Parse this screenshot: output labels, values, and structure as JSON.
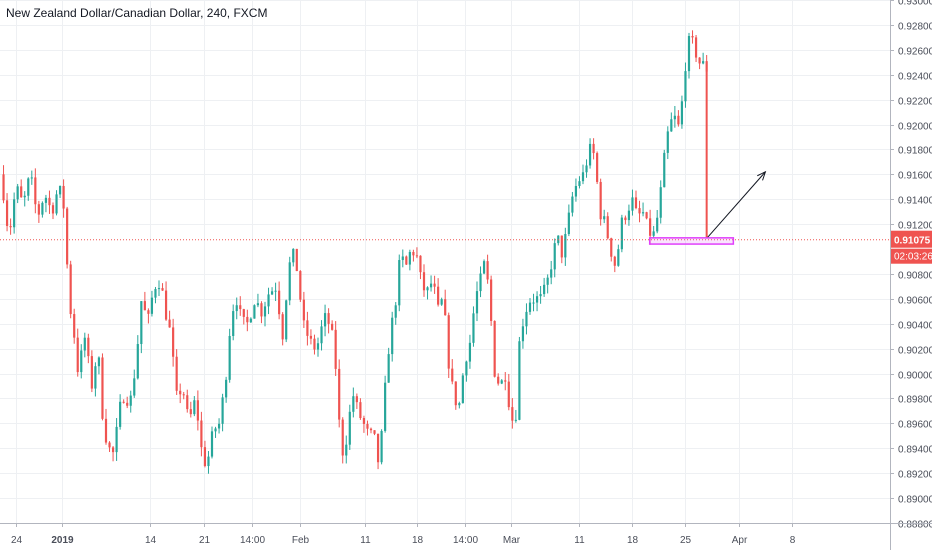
{
  "chart_data": {
    "type": "candlestick",
    "title": "New Zealand Dollar/Canadian Dollar, 240, FXCM",
    "ylim": [
      0.888,
      0.93
    ],
    "y_ticks": [
      "0.93000",
      "0.92800",
      "0.92600",
      "0.92400",
      "0.92200",
      "0.92000",
      "0.91800",
      "0.91600",
      "0.91400",
      "0.91200",
      "0.90800",
      "0.90600",
      "0.90400",
      "0.90200",
      "0.90000",
      "0.89800",
      "0.89600",
      "0.89400",
      "0.89200",
      "0.89000",
      "0.88800"
    ],
    "x_ticks": [
      {
        "label": "24",
        "pos": 0.018
      },
      {
        "label": "2019",
        "pos": 0.07
      },
      {
        "label": "14",
        "pos": 0.168
      },
      {
        "label": "21",
        "pos": 0.229
      },
      {
        "label": "14:00",
        "pos": 0.283
      },
      {
        "label": "Feb",
        "pos": 0.337
      },
      {
        "label": "11",
        "pos": 0.41
      },
      {
        "label": "18",
        "pos": 0.469
      },
      {
        "label": "14:00",
        "pos": 0.522
      },
      {
        "label": "Mar",
        "pos": 0.574
      },
      {
        "label": "11",
        "pos": 0.65
      },
      {
        "label": "18",
        "pos": 0.71
      },
      {
        "label": "25",
        "pos": 0.77
      },
      {
        "label": "Apr",
        "pos": 0.83
      },
      {
        "label": "8",
        "pos": 0.89
      }
    ],
    "last_price": {
      "value": 0.91075,
      "label": "0.91075",
      "countdown": "02:03:26",
      "color": "#ef5350"
    },
    "bull_color": "#26a69a",
    "bear_color": "#ef5350",
    "anchors": [
      [
        0.0,
        0.916
      ],
      [
        0.004,
        0.9145
      ],
      [
        0.01,
        0.911
      ],
      [
        0.018,
        0.915
      ],
      [
        0.026,
        0.9135
      ],
      [
        0.034,
        0.916
      ],
      [
        0.042,
        0.9125
      ],
      [
        0.05,
        0.9145
      ],
      [
        0.058,
        0.913
      ],
      [
        0.066,
        0.915
      ],
      [
        0.073,
        0.913
      ],
      [
        0.077,
        0.906
      ],
      [
        0.082,
        0.904
      ],
      [
        0.088,
        0.9
      ],
      [
        0.095,
        0.903
      ],
      [
        0.103,
        0.899
      ],
      [
        0.11,
        0.902
      ],
      [
        0.116,
        0.896
      ],
      [
        0.122,
        0.894
      ],
      [
        0.128,
        0.8935
      ],
      [
        0.134,
        0.897
      ],
      [
        0.14,
        0.8985
      ],
      [
        0.146,
        0.8975
      ],
      [
        0.153,
        0.901
      ],
      [
        0.159,
        0.906
      ],
      [
        0.166,
        0.904
      ],
      [
        0.173,
        0.907
      ],
      [
        0.18,
        0.9075
      ],
      [
        0.186,
        0.905
      ],
      [
        0.192,
        0.903
      ],
      [
        0.198,
        0.898
      ],
      [
        0.205,
        0.899
      ],
      [
        0.212,
        0.896
      ],
      [
        0.22,
        0.898
      ],
      [
        0.226,
        0.894
      ],
      [
        0.232,
        0.8925
      ],
      [
        0.24,
        0.8955
      ],
      [
        0.247,
        0.896
      ],
      [
        0.254,
        0.9
      ],
      [
        0.26,
        0.905
      ],
      [
        0.266,
        0.906
      ],
      [
        0.272,
        0.904
      ],
      [
        0.278,
        0.904
      ],
      [
        0.286,
        0.906
      ],
      [
        0.294,
        0.905
      ],
      [
        0.302,
        0.9065
      ],
      [
        0.31,
        0.907
      ],
      [
        0.318,
        0.903
      ],
      [
        0.324,
        0.9085
      ],
      [
        0.33,
        0.9095
      ],
      [
        0.335,
        0.908
      ],
      [
        0.34,
        0.904
      ],
      [
        0.346,
        0.903
      ],
      [
        0.352,
        0.902
      ],
      [
        0.358,
        0.9025
      ],
      [
        0.364,
        0.9045
      ],
      [
        0.37,
        0.904
      ],
      [
        0.376,
        0.902
      ],
      [
        0.38,
        0.897
      ],
      [
        0.384,
        0.8935
      ],
      [
        0.39,
        0.895
      ],
      [
        0.396,
        0.8985
      ],
      [
        0.402,
        0.897
      ],
      [
        0.408,
        0.896
      ],
      [
        0.414,
        0.895
      ],
      [
        0.42,
        0.895
      ],
      [
        0.426,
        0.8925
      ],
      [
        0.43,
        0.896
      ],
      [
        0.434,
        0.9
      ],
      [
        0.438,
        0.903
      ],
      [
        0.444,
        0.9055
      ],
      [
        0.45,
        0.9095
      ],
      [
        0.456,
        0.9085
      ],
      [
        0.462,
        0.91
      ],
      [
        0.468,
        0.9095
      ],
      [
        0.474,
        0.907
      ],
      [
        0.48,
        0.9065
      ],
      [
        0.486,
        0.9075
      ],
      [
        0.492,
        0.905
      ],
      [
        0.498,
        0.906
      ],
      [
        0.504,
        0.901
      ],
      [
        0.51,
        0.898
      ],
      [
        0.516,
        0.8975
      ],
      [
        0.522,
        0.901
      ],
      [
        0.528,
        0.9025
      ],
      [
        0.534,
        0.906
      ],
      [
        0.54,
        0.9075
      ],
      [
        0.545,
        0.909
      ],
      [
        0.55,
        0.906
      ],
      [
        0.556,
        0.9
      ],
      [
        0.562,
        0.899
      ],
      [
        0.568,
        0.9
      ],
      [
        0.574,
        0.8965
      ],
      [
        0.579,
        0.896
      ],
      [
        0.584,
        0.903
      ],
      [
        0.59,
        0.905
      ],
      [
        0.596,
        0.906
      ],
      [
        0.602,
        0.906
      ],
      [
        0.608,
        0.906
      ],
      [
        0.614,
        0.907
      ],
      [
        0.62,
        0.909
      ],
      [
        0.626,
        0.911
      ],
      [
        0.632,
        0.9095
      ],
      [
        0.638,
        0.912
      ],
      [
        0.644,
        0.9145
      ],
      [
        0.65,
        0.9155
      ],
      [
        0.656,
        0.916
      ],
      [
        0.662,
        0.918
      ],
      [
        0.668,
        0.9175
      ],
      [
        0.674,
        0.913
      ],
      [
        0.68,
        0.912
      ],
      [
        0.686,
        0.91
      ],
      [
        0.692,
        0.9085
      ],
      [
        0.698,
        0.912
      ],
      [
        0.704,
        0.913
      ],
      [
        0.71,
        0.914
      ],
      [
        0.716,
        0.9125
      ],
      [
        0.722,
        0.913
      ],
      [
        0.728,
        0.9115
      ],
      [
        0.734,
        0.911
      ],
      [
        0.74,
        0.913
      ],
      [
        0.746,
        0.917
      ],
      [
        0.752,
        0.92
      ],
      [
        0.758,
        0.9205
      ],
      [
        0.764,
        0.9195
      ],
      [
        0.768,
        0.9235
      ],
      [
        0.772,
        0.926
      ],
      [
        0.776,
        0.927
      ],
      [
        0.78,
        0.926
      ],
      [
        0.784,
        0.9255
      ],
      [
        0.788,
        0.9245
      ],
      [
        0.792,
        0.925
      ],
      [
        0.794,
        0.9245
      ]
    ],
    "annotations": [
      {
        "type": "drop-line",
        "x": 0.794,
        "from": 0.9243,
        "to": 0.91085,
        "color": "#ef5350"
      },
      {
        "type": "arrow",
        "from": [
          0.794,
          0.91085
        ],
        "to": [
          0.86,
          0.9162
        ],
        "color": "#131722"
      },
      {
        "type": "support-box",
        "x0": 0.73,
        "x1": 0.824,
        "y0": 0.9104,
        "y1": 0.9109,
        "color": "#e040fb"
      }
    ]
  }
}
